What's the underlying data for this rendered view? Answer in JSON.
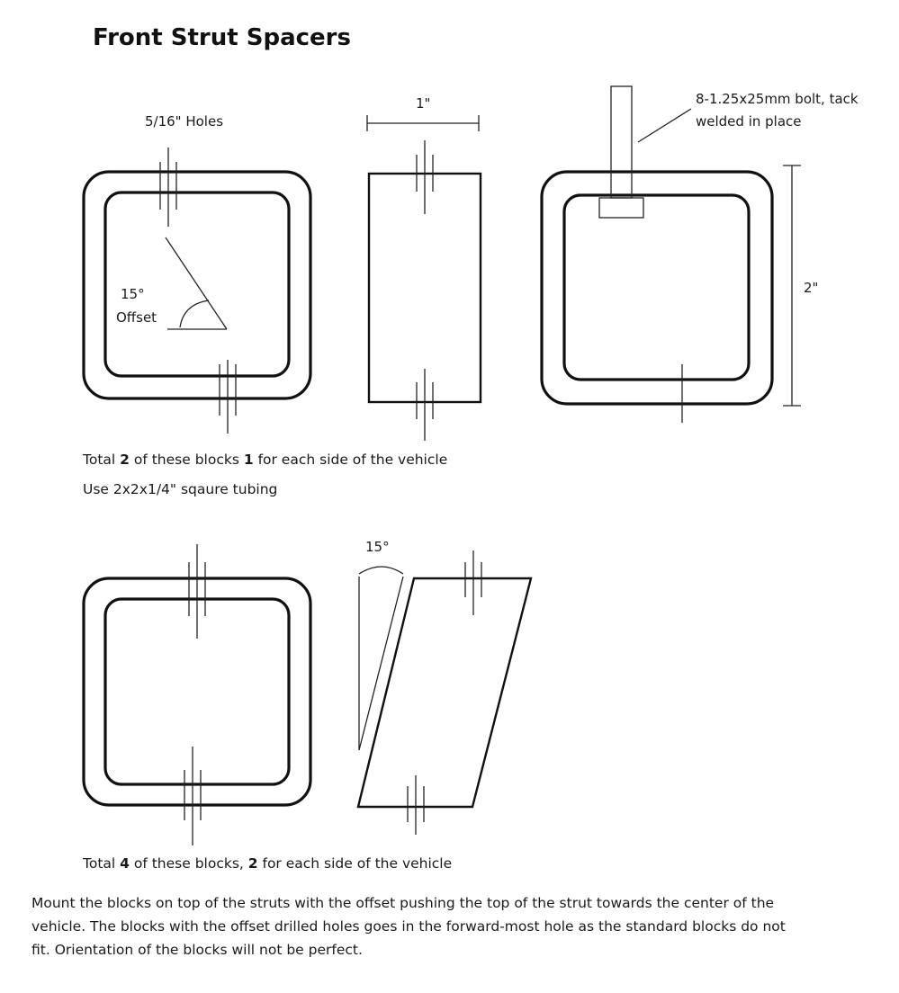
{
  "title": "Front Strut Spacers",
  "labels": {
    "holes": "5/16\" Holes",
    "width_dim": "1\"",
    "bolt_line1": "8-1.25x25mm bolt, tack",
    "bolt_line2": "welded in place",
    "height_dim": "2\"",
    "offset_angle": "15°",
    "offset_word": "Offset",
    "bottom_angle": "15°"
  },
  "notes": {
    "block1_prefix": "Total ",
    "block1_count": "2",
    "block1_mid": " of these blocks ",
    "block1_each": "1",
    "block1_suffix": " for each side of the vehicle",
    "tubing": "Use 2x2x1/4\" sqaure tubing",
    "block2_prefix": "Total ",
    "block2_count": "4",
    "block2_mid": " of these blocks, ",
    "block2_each": "2",
    "block2_suffix": " for each side of the vehicle",
    "mount_line1": "Mount the blocks on top of the struts with the offset pushing the top of the strut towards the center of the",
    "mount_line2": "vehicle. The blocks with the offset drilled holes goes in the forward-most hole as the standard blocks do not",
    "mount_line3": "fit. Orientation of the blocks will not be perfect."
  }
}
